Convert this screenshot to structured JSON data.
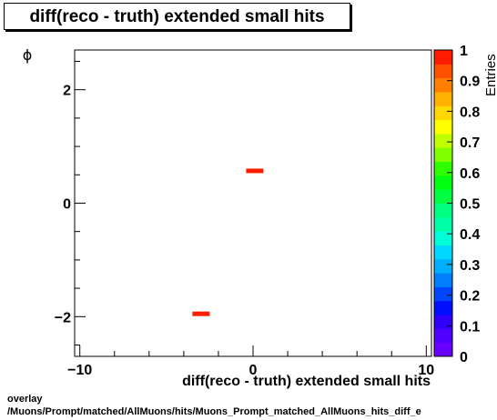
{
  "chart_data": {
    "type": "heatmap",
    "title": "diff(reco - truth) extended small hits",
    "xlabel": "diff(reco - truth) extended small hits",
    "ylabel": "ϕ",
    "zlabel": "Entries",
    "xlim": [
      -10.3,
      10.3
    ],
    "ylim": [
      -2.7,
      2.7
    ],
    "zlim": [
      0,
      1
    ],
    "x_ticks": [
      -10,
      0,
      10
    ],
    "x_tick_labels": [
      "−10",
      "0",
      "10"
    ],
    "y_ticks": [
      -2,
      0,
      2
    ],
    "y_tick_labels": [
      "−2",
      "0",
      "2"
    ],
    "z_ticks": [
      0,
      0.1,
      0.2,
      0.3,
      0.4,
      0.5,
      0.6,
      0.7,
      0.8,
      0.9,
      1
    ],
    "z_tick_labels": [
      "0",
      "0.1",
      "0.2",
      "0.3",
      "0.4",
      "0.5",
      "0.6",
      "0.7",
      "0.8",
      "0.9",
      "1"
    ],
    "cells": [
      {
        "x0": -0.4,
        "x1": 0.6,
        "y0": 0.53,
        "y1": 0.61,
        "z": 1
      },
      {
        "x0": -3.5,
        "x1": -2.5,
        "y0": -1.99,
        "y1": -1.91,
        "z": 1
      }
    ],
    "palette": [
      "#6a00ff",
      "#5000ff",
      "#3000ff",
      "#0010ff",
      "#0046ff",
      "#0080ff",
      "#00b0ff",
      "#00d8ff",
      "#00ffd8",
      "#00ffa8",
      "#00ff80",
      "#00ff40",
      "#00ff10",
      "#30ff00",
      "#80ff00",
      "#c0ff00",
      "#ffff00",
      "#ffd800",
      "#ffb000",
      "#ff8000",
      "#ff5000",
      "#ff1c00"
    ],
    "fill_color": "#ff1c00"
  },
  "footer": {
    "line1": "overlay",
    "line2": "/Muons/Prompt/matched/AllMuons/hits/Muons_Prompt_matched_AllMuons_hits_diff_e"
  }
}
